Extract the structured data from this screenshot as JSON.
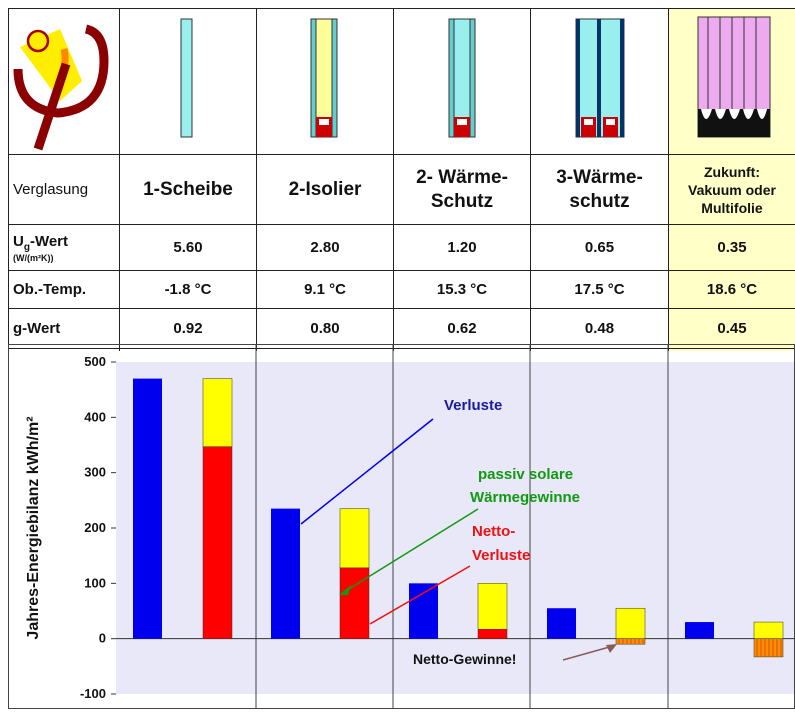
{
  "table": {
    "row_labels": {
      "verglasung": "Verglasung",
      "ug_main": "U",
      "ug_sub": "g",
      "ug_rest": "-Wert",
      "ug_unit": "(W/(m²K))",
      "temp": "Ob.-Temp.",
      "g": "g-Wert"
    },
    "columns": [
      {
        "name_lines": [
          "1-Scheibe"
        ],
        "ug": "5.60",
        "temp": "-1.8 °C",
        "g": "0.92",
        "icon": "single-pane-icon"
      },
      {
        "name_lines": [
          "2-Isolier"
        ],
        "ug": "2.80",
        "temp": "9.1 °C",
        "g": "0.80",
        "icon": "double-insulating-pane-icon"
      },
      {
        "name_lines": [
          "2- Wärme-",
          "Schutz"
        ],
        "ug": "1.20",
        "temp": "15.3 °C",
        "g": "0.62",
        "icon": "double-low-e-pane-icon"
      },
      {
        "name_lines": [
          "3-Wärme-",
          "schutz"
        ],
        "ug": "0.65",
        "temp": "17.5 °C",
        "g": "0.48",
        "icon": "triple-low-e-pane-icon"
      },
      {
        "name_lines": [
          "Zukunft:",
          "Vakuum oder",
          "Multifolie"
        ],
        "ug": "0.35",
        "temp": "18.6 °C",
        "g": "0.45",
        "icon": "vacuum-multifoil-pane-icon"
      }
    ],
    "highlight_color": "#ffffc8",
    "logo": "phi-logo-icon"
  },
  "chart_data": {
    "type": "bar",
    "ylabel": "Jahres-Energiebilanz kWh/m²",
    "ylim": [
      -100,
      500
    ],
    "yticks": [
      500,
      400,
      300,
      200,
      100,
      0,
      -100
    ],
    "groups": [
      {
        "verluste": 470,
        "netto_verluste": 347,
        "solar_gains": 123,
        "netto_gewinne": 0
      },
      {
        "verluste": 235,
        "netto_verluste": 128,
        "solar_gains": 107,
        "netto_gewinne": 0
      },
      {
        "verluste": 100,
        "netto_verluste": 17,
        "solar_gains": 83,
        "netto_gewinne": 0
      },
      {
        "verluste": 55,
        "netto_verluste": 0,
        "solar_gains": 55,
        "netto_gewinne": -10
      },
      {
        "verluste": 30,
        "netto_verluste": 0,
        "solar_gains": 30,
        "netto_gewinne": -33
      }
    ],
    "annotations": {
      "verluste": "Verluste",
      "solar_line1": "passiv solare",
      "solar_line2": "Wärmegewinne",
      "netto_line1": "Netto-",
      "netto_line2": "Verluste",
      "gewinne": "Netto-Gewinne!"
    },
    "colors": {
      "verluste": "#0000ee",
      "netto_verluste": "#ff0000",
      "solar": "#ffff00",
      "netto_gewinne": "#ff8c00",
      "background": "#e8e8f8",
      "verluste_text": "#1a1aa0",
      "solar_text": "#119911",
      "netto_text": "#ee1111",
      "arrow": "#8a5a5a"
    }
  }
}
